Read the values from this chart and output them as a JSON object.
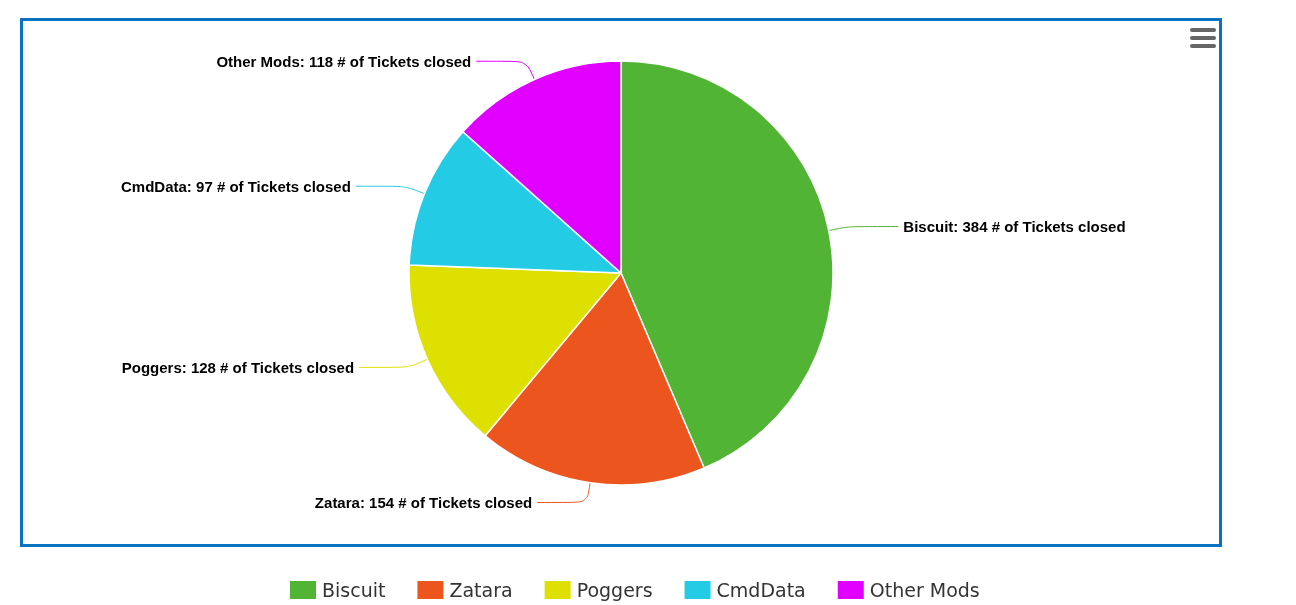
{
  "chart_data": {
    "type": "pie",
    "categories": [
      "Biscuit",
      "Zatara",
      "Poggers",
      "CmdData",
      "Other Mods"
    ],
    "values": [
      384,
      154,
      128,
      97,
      118
    ],
    "colors": [
      "#52b435",
      "#ec561e",
      "#dde000",
      "#24cbe5",
      "#e100ff"
    ],
    "value_labels": [
      "Biscuit: 384 # of Tickets closed",
      "Zatara: 154 # of Tickets closed",
      "Poggers: 128 # of Tickets closed",
      "CmdData: 97 # of Tickets closed",
      "Other Mods: 118 # of Tickets closed"
    ],
    "legend": "bottom"
  }
}
